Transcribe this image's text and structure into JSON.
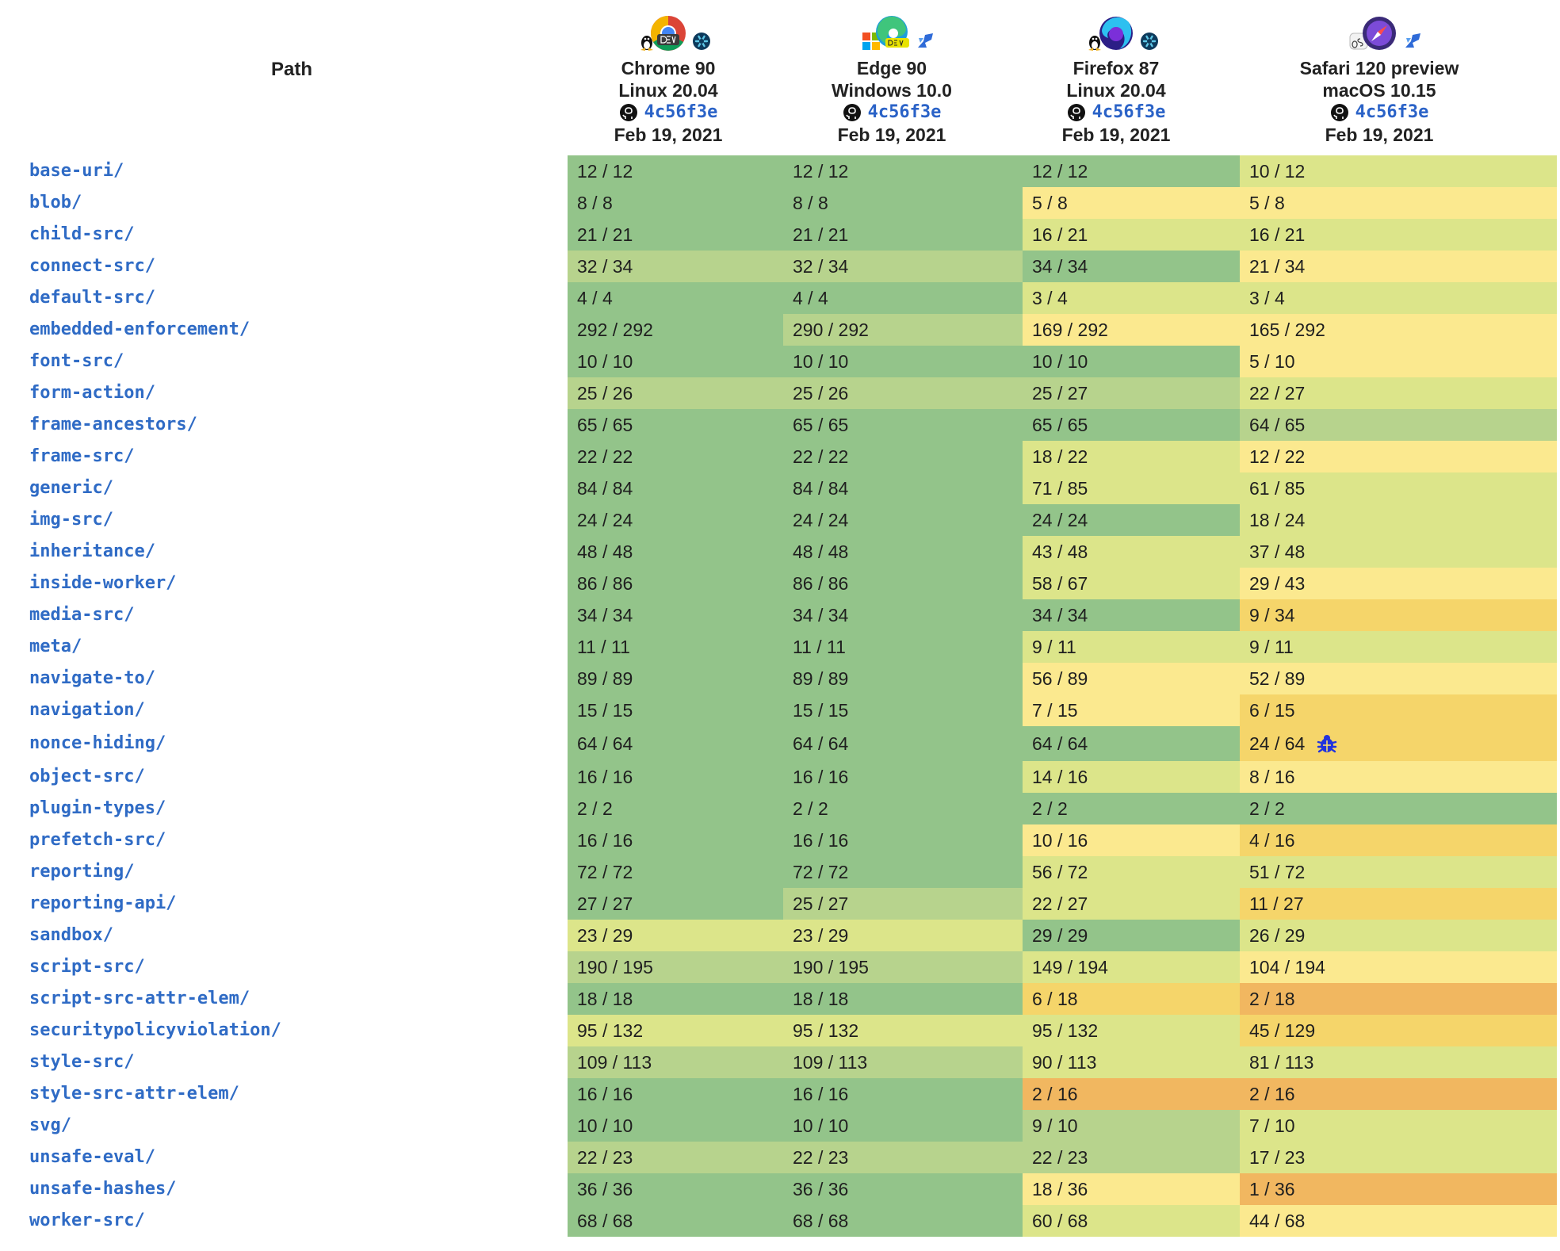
{
  "table": {
    "path_header": "Path",
    "browsers": [
      {
        "name": "Chrome 90",
        "os": "Linux 20.04",
        "commit": "4c56f3e",
        "date": "Feb 19, 2021",
        "icons": [
          "linux-icon",
          "chrome-dev-icon",
          "wpt-icon"
        ]
      },
      {
        "name": "Edge 90",
        "os": "Windows 10.0",
        "commit": "4c56f3e",
        "date": "Feb 19, 2021",
        "icons": [
          "windows-icon",
          "edge-dev-icon",
          "azure-icon"
        ]
      },
      {
        "name": "Firefox 87",
        "os": "Linux 20.04",
        "commit": "4c56f3e",
        "date": "Feb 19, 2021",
        "icons": [
          "linux-icon",
          "firefox-nightly-icon",
          "wpt-icon"
        ]
      },
      {
        "name": "Safari 120 preview",
        "os": "macOS 10.15",
        "commit": "4c56f3e",
        "date": "Feb 19, 2021",
        "icons": [
          "macos-icon",
          "safari-preview-icon",
          "azure-icon"
        ]
      }
    ],
    "rows": [
      {
        "path": "base-uri/",
        "results": [
          "12 / 12",
          "12 / 12",
          "12 / 12",
          "10 / 12"
        ]
      },
      {
        "path": "blob/",
        "results": [
          "8 / 8",
          "8 / 8",
          "5 / 8",
          "5 / 8"
        ]
      },
      {
        "path": "child-src/",
        "results": [
          "21 / 21",
          "21 / 21",
          "16 / 21",
          "16 / 21"
        ]
      },
      {
        "path": "connect-src/",
        "results": [
          "32 / 34",
          "32 / 34",
          "34 / 34",
          "21 / 34"
        ]
      },
      {
        "path": "default-src/",
        "results": [
          "4 / 4",
          "4 / 4",
          "3 / 4",
          "3 / 4"
        ]
      },
      {
        "path": "embedded-enforcement/",
        "results": [
          "292 / 292",
          "290 / 292",
          "169 / 292",
          "165 / 292"
        ]
      },
      {
        "path": "font-src/",
        "results": [
          "10 / 10",
          "10 / 10",
          "10 / 10",
          "5 / 10"
        ]
      },
      {
        "path": "form-action/",
        "results": [
          "25 / 26",
          "25 / 26",
          "25 / 27",
          "22 / 27"
        ]
      },
      {
        "path": "frame-ancestors/",
        "results": [
          "65 / 65",
          "65 / 65",
          "65 / 65",
          "64 / 65"
        ]
      },
      {
        "path": "frame-src/",
        "results": [
          "22 / 22",
          "22 / 22",
          "18 / 22",
          "12 / 22"
        ]
      },
      {
        "path": "generic/",
        "results": [
          "84 / 84",
          "84 / 84",
          "71 / 85",
          "61 / 85"
        ]
      },
      {
        "path": "img-src/",
        "results": [
          "24 / 24",
          "24 / 24",
          "24 / 24",
          "18 / 24"
        ]
      },
      {
        "path": "inheritance/",
        "results": [
          "48 / 48",
          "48 / 48",
          "43 / 48",
          "37 / 48"
        ]
      },
      {
        "path": "inside-worker/",
        "results": [
          "86 / 86",
          "86 / 86",
          "58 / 67",
          "29 / 43"
        ]
      },
      {
        "path": "media-src/",
        "results": [
          "34 / 34",
          "34 / 34",
          "34 / 34",
          "9 / 34"
        ]
      },
      {
        "path": "meta/",
        "results": [
          "11 / 11",
          "11 / 11",
          "9 / 11",
          "9 / 11"
        ]
      },
      {
        "path": "navigate-to/",
        "results": [
          "89 / 89",
          "89 / 89",
          "56 / 89",
          "52 / 89"
        ]
      },
      {
        "path": "navigation/",
        "results": [
          "15 / 15",
          "15 / 15",
          "7 / 15",
          "6 / 15"
        ]
      },
      {
        "path": "nonce-hiding/",
        "results": [
          "64 / 64",
          "64 / 64",
          "64 / 64",
          "24 / 64"
        ],
        "bug": "bug-icon"
      },
      {
        "path": "object-src/",
        "results": [
          "16 / 16",
          "16 / 16",
          "14 / 16",
          "8 / 16"
        ]
      },
      {
        "path": "plugin-types/",
        "results": [
          "2 / 2",
          "2 / 2",
          "2 / 2",
          "2 / 2"
        ]
      },
      {
        "path": "prefetch-src/",
        "results": [
          "16 / 16",
          "16 / 16",
          "10 / 16",
          "4 / 16"
        ]
      },
      {
        "path": "reporting/",
        "results": [
          "72 / 72",
          "72 / 72",
          "56 / 72",
          "51 / 72"
        ]
      },
      {
        "path": "reporting-api/",
        "results": [
          "27 / 27",
          "25 / 27",
          "22 / 27",
          "11 / 27"
        ]
      },
      {
        "path": "sandbox/",
        "results": [
          "23 / 29",
          "23 / 29",
          "29 / 29",
          "26 / 29"
        ]
      },
      {
        "path": "script-src/",
        "results": [
          "190 / 195",
          "190 / 195",
          "149 / 194",
          "104 / 194"
        ]
      },
      {
        "path": "script-src-attr-elem/",
        "results": [
          "18 / 18",
          "18 / 18",
          "6 / 18",
          "2 / 18"
        ]
      },
      {
        "path": "securitypolicyviolation/",
        "results": [
          "95 / 132",
          "95 / 132",
          "95 / 132",
          "45 / 129"
        ]
      },
      {
        "path": "style-src/",
        "results": [
          "109 / 113",
          "109 / 113",
          "90 / 113",
          "81 / 113"
        ]
      },
      {
        "path": "style-src-attr-elem/",
        "results": [
          "16 / 16",
          "16 / 16",
          "2 / 16",
          "2 / 16"
        ]
      },
      {
        "path": "svg/",
        "results": [
          "10 / 10",
          "10 / 10",
          "9 / 10",
          "7 / 10"
        ]
      },
      {
        "path": "unsafe-eval/",
        "results": [
          "22 / 23",
          "22 / 23",
          "22 / 23",
          "17 / 23"
        ]
      },
      {
        "path": "unsafe-hashes/",
        "results": [
          "36 / 36",
          "36 / 36",
          "18 / 36",
          "1 / 36"
        ]
      },
      {
        "path": "worker-src/",
        "results": [
          "68 / 68",
          "68 / 68",
          "60 / 68",
          "44 / 68"
        ]
      }
    ]
  },
  "colors": {
    "link": "#2f6bc5",
    "pass_full": "#93c48a",
    "pass_high": "#b7d38d",
    "pass_mid": "#dce58a",
    "pass_low": "#fbe98f",
    "pass_lower": "#f5d56a",
    "pass_lowest": "#f1b760"
  }
}
